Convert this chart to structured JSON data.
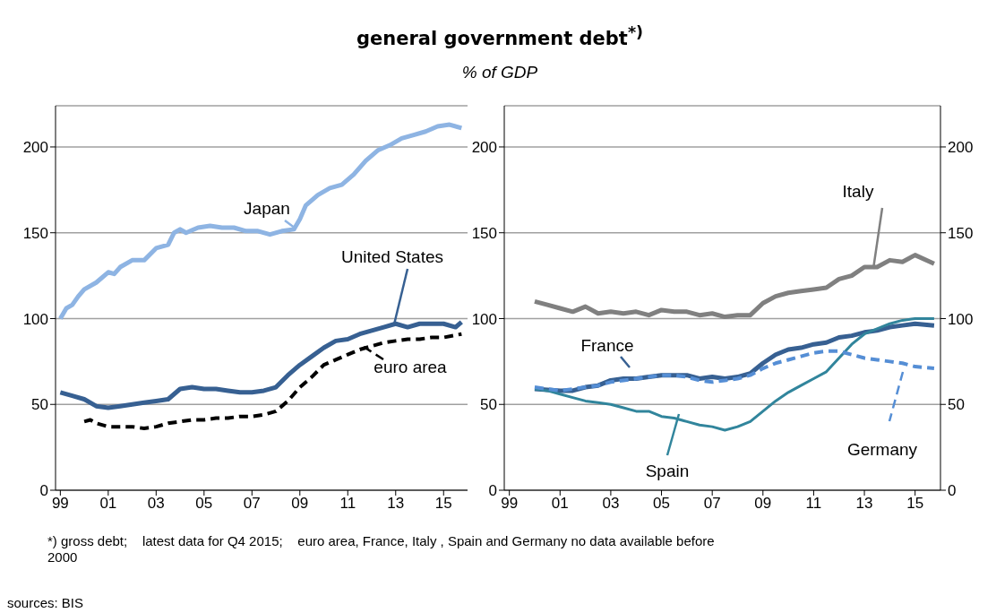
{
  "chart_data": [
    {
      "type": "line",
      "title": "general government debt$^{*)}$",
      "subtitle": "% of GDP",
      "annotations": [
        "*) gross debt;    latest data for Q4 2015;    euro area, France, Italy , Spain and Germany no data available before  2000",
        "sources: BIS"
      ],
      "xlim": [
        1998.8,
        2016.0
      ],
      "xticks": [
        {
          "value": 1999,
          "label": "99"
        },
        {
          "value": 2001,
          "label": "01"
        },
        {
          "value": 2003,
          "label": "03"
        },
        {
          "value": 2005,
          "label": "05"
        },
        {
          "value": 2007,
          "label": "07"
        },
        {
          "value": 2009,
          "label": "09"
        },
        {
          "value": 2011,
          "label": "11"
        },
        {
          "value": 2013,
          "label": "13"
        },
        {
          "value": 2015,
          "label": "15"
        }
      ],
      "ylim": [
        0,
        224
      ],
      "yticks": [
        0,
        50,
        100,
        150,
        200
      ],
      "grid": "y",
      "series": [
        {
          "name": "Japan",
          "color": "#8eb4e3",
          "x": [
            1999.0,
            1999.25,
            1999.5,
            1999.75,
            2000.0,
            2000.5,
            2001.0,
            2001.25,
            2001.5,
            2002.0,
            2002.5,
            2003.0,
            2003.5,
            2003.75,
            2004.0,
            2004.25,
            2004.75,
            2005.25,
            2005.75,
            2006.25,
            2006.75,
            2007.25,
            2007.75,
            2008.25,
            2008.75,
            2009.0,
            2009.25,
            2009.75,
            2010.25,
            2010.75,
            2011.25,
            2011.75,
            2012.25,
            2012.75,
            2013.25,
            2013.75,
            2014.25,
            2014.75,
            2015.25,
            2015.75
          ],
          "values": [
            100,
            106,
            108,
            113,
            117,
            121,
            127,
            126,
            130,
            134,
            134,
            141,
            143,
            150,
            152,
            150,
            153,
            154,
            153,
            153,
            151,
            151,
            149,
            151,
            152,
            158,
            166,
            172,
            176,
            178,
            184,
            192,
            198,
            201,
            205,
            207,
            209,
            212,
            213,
            211
          ]
        },
        {
          "name": "United States",
          "color": "#376092",
          "x": [
            1999.0,
            1999.5,
            2000.0,
            2000.5,
            2001.0,
            2001.5,
            2002.0,
            2002.5,
            2003.0,
            2003.5,
            2004.0,
            2004.5,
            2005.0,
            2005.5,
            2006.0,
            2006.5,
            2007.0,
            2007.5,
            2008.0,
            2008.5,
            2009.0,
            2009.5,
            2010.0,
            2010.5,
            2011.0,
            2011.5,
            2012.0,
            2012.5,
            2013.0,
            2013.5,
            2014.0,
            2014.5,
            2015.0,
            2015.5,
            2015.75
          ],
          "values": [
            57,
            55,
            53,
            49,
            48,
            49,
            50,
            51,
            52,
            53,
            59,
            60,
            59,
            59,
            58,
            57,
            57,
            58,
            60,
            67,
            73,
            78,
            83,
            87,
            88,
            91,
            93,
            95,
            97,
            95,
            97,
            97,
            97,
            95,
            98
          ]
        },
        {
          "name": "euro area",
          "color": "#000000",
          "line_style": "dashed",
          "x": [
            2000.0,
            2000.25,
            2000.5,
            2001.0,
            2001.5,
            2002.0,
            2002.5,
            2003.0,
            2003.5,
            2004.0,
            2004.5,
            2005.0,
            2005.5,
            2006.0,
            2006.5,
            2007.0,
            2007.5,
            2008.0,
            2008.5,
            2009.0,
            2009.5,
            2010.0,
            2010.5,
            2011.0,
            2011.5,
            2012.0,
            2012.5,
            2013.0,
            2013.5,
            2014.0,
            2014.5,
            2015.0,
            2015.75
          ],
          "values": [
            40,
            41,
            39,
            37,
            37,
            37,
            36,
            37,
            39,
            40,
            41,
            41,
            42,
            42,
            43,
            43,
            44,
            46,
            52,
            60,
            66,
            73,
            76,
            79,
            82,
            84,
            86,
            87,
            88,
            88,
            89,
            89,
            91
          ]
        }
      ]
    },
    {
      "type": "line",
      "xlim": [
        1998.8,
        2016.0
      ],
      "xticks": [
        {
          "value": 1999,
          "label": "99"
        },
        {
          "value": 2001,
          "label": "01"
        },
        {
          "value": 2003,
          "label": "03"
        },
        {
          "value": 2005,
          "label": "05"
        },
        {
          "value": 2007,
          "label": "07"
        },
        {
          "value": 2009,
          "label": "09"
        },
        {
          "value": 2011,
          "label": "11"
        },
        {
          "value": 2013,
          "label": "13"
        },
        {
          "value": 2015,
          "label": "15"
        }
      ],
      "ylim": [
        0,
        224
      ],
      "yticks": [
        0,
        50,
        100,
        150,
        200
      ],
      "y2lim": [
        0,
        224
      ],
      "y2ticks": [
        0,
        50,
        100,
        150,
        200
      ],
      "grid": "y",
      "series": [
        {
          "name": "Italy",
          "color": "#808080",
          "x": [
            2000.0,
            2000.5,
            2001.0,
            2001.5,
            2002.0,
            2002.5,
            2003.0,
            2003.5,
            2004.0,
            2004.5,
            2005.0,
            2005.5,
            2006.0,
            2006.5,
            2007.0,
            2007.5,
            2008.0,
            2008.5,
            2009.0,
            2009.5,
            2010.0,
            2010.5,
            2011.0,
            2011.5,
            2012.0,
            2012.5,
            2013.0,
            2013.5,
            2014.0,
            2014.5,
            2015.0,
            2015.75
          ],
          "values": [
            110,
            108,
            106,
            104,
            107,
            103,
            104,
            103,
            104,
            102,
            105,
            104,
            104,
            102,
            103,
            101,
            102,
            102,
            109,
            113,
            115,
            116,
            117,
            118,
            123,
            125,
            130,
            130,
            134,
            133,
            137,
            132
          ]
        },
        {
          "name": "France",
          "color": "#376092",
          "x": [
            2000.0,
            2001.0,
            2001.5,
            2002.0,
            2002.5,
            2003.0,
            2003.5,
            2004.0,
            2004.5,
            2005.0,
            2005.5,
            2006.0,
            2006.5,
            2007.0,
            2007.5,
            2008.0,
            2008.5,
            2009.0,
            2009.5,
            2010.0,
            2010.5,
            2011.0,
            2011.5,
            2012.0,
            2012.5,
            2013.0,
            2013.5,
            2014.0,
            2014.5,
            2015.0,
            2015.75
          ],
          "values": [
            59,
            58,
            58,
            60,
            61,
            64,
            65,
            65,
            66,
            67,
            67,
            67,
            65,
            66,
            65,
            66,
            68,
            74,
            79,
            82,
            83,
            85,
            86,
            89,
            90,
            92,
            93,
            95,
            96,
            97,
            96
          ]
        },
        {
          "name": "Spain",
          "color": "#31859c",
          "x": [
            2000.0,
            2000.5,
            2001.0,
            2001.5,
            2002.0,
            2002.5,
            2003.0,
            2003.5,
            2004.0,
            2004.5,
            2005.0,
            2005.5,
            2006.0,
            2006.5,
            2007.0,
            2007.5,
            2008.0,
            2008.5,
            2009.0,
            2009.5,
            2010.0,
            2010.5,
            2011.0,
            2011.5,
            2012.0,
            2012.5,
            2013.0,
            2013.5,
            2014.0,
            2014.5,
            2015.0,
            2015.75
          ],
          "values": [
            59,
            58,
            56,
            54,
            52,
            51,
            50,
            48,
            46,
            46,
            43,
            42,
            40,
            38,
            37,
            35,
            37,
            40,
            46,
            52,
            57,
            61,
            65,
            69,
            77,
            85,
            91,
            94,
            97,
            99,
            100,
            100
          ]
        },
        {
          "name": "Germany",
          "color": "#558ed5",
          "line_style": "dashed",
          "x": [
            2000.0,
            2000.5,
            2001.0,
            2001.5,
            2002.0,
            2002.5,
            2003.0,
            2003.5,
            2004.0,
            2004.5,
            2005.0,
            2005.5,
            2006.0,
            2006.5,
            2007.0,
            2007.5,
            2008.0,
            2008.5,
            2009.0,
            2009.5,
            2010.0,
            2010.5,
            2011.0,
            2011.5,
            2012.0,
            2012.5,
            2013.0,
            2013.5,
            2014.0,
            2014.5,
            2015.0,
            2015.75
          ],
          "values": [
            60,
            59,
            58,
            59,
            60,
            61,
            63,
            64,
            65,
            66,
            67,
            67,
            66,
            64,
            63,
            64,
            65,
            67,
            71,
            74,
            76,
            78,
            80,
            81,
            81,
            79,
            77,
            76,
            75,
            74,
            72,
            71
          ]
        }
      ]
    }
  ]
}
